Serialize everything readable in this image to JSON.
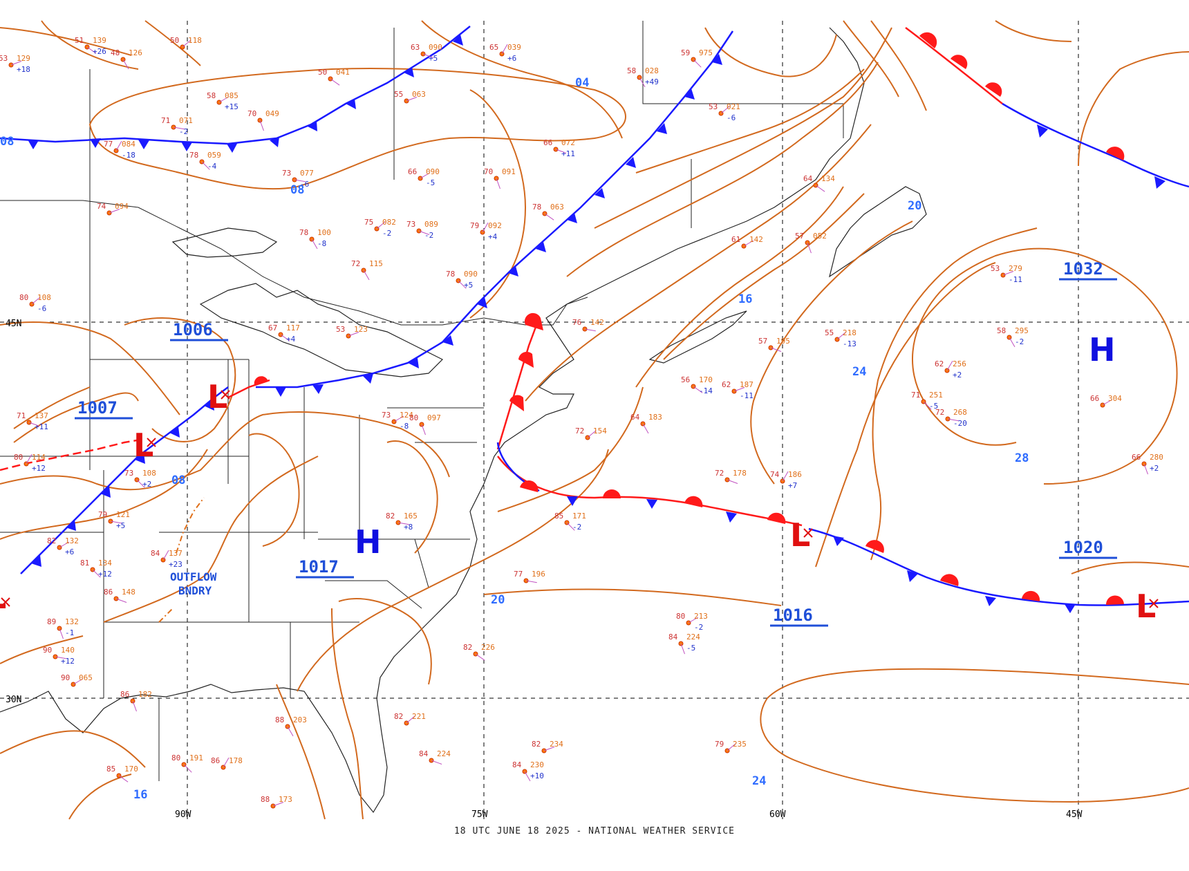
{
  "footer": "18 UTC JUNE 18 2025 - NATIONAL WEATHER SERVICE",
  "colors": {
    "isobar": "#d2691e",
    "cold_front": "#1a1aff",
    "warm_front": "#ff1a1a",
    "high": "#1010e0",
    "low": "#e01010"
  },
  "graticule": {
    "lat_labels": [
      "45N",
      "30N"
    ],
    "lon_labels": [
      "90W",
      "75W",
      "60W",
      "45W"
    ]
  },
  "pressure_values": [
    "1006",
    "1007",
    "1017",
    "1016",
    "1032",
    "1020"
  ],
  "isobar_labels": [
    "04",
    "08",
    "08",
    "08",
    "16",
    "20",
    "20",
    "24",
    "24",
    "28",
    "16",
    "24"
  ],
  "centers": {
    "highs": [
      "H",
      "H"
    ],
    "lows": [
      "L",
      "L",
      "L",
      "L",
      "L"
    ]
  },
  "annotation": {
    "line1": "OUTFLOW",
    "line2": "BNDRY"
  },
  "station_samples": [
    {
      "t": "51",
      "p": "139",
      "x": "+26"
    },
    {
      "t": "53",
      "p": "129",
      "x": "+18"
    },
    {
      "t": "48",
      "p": "126"
    },
    {
      "t": "50",
      "p": "118"
    },
    {
      "t": "63",
      "p": "090",
      "x": "+5"
    },
    {
      "t": "65",
      "p": "039",
      "x": "+6"
    },
    {
      "t": "59",
      "p": "975"
    },
    {
      "t": "71",
      "p": "071",
      "x": "-2"
    },
    {
      "t": "58",
      "p": "085",
      "x": "+15"
    },
    {
      "t": "70",
      "p": "049"
    },
    {
      "t": "50",
      "p": "041"
    },
    {
      "t": "55",
      "p": "063"
    },
    {
      "t": "58",
      "p": "028",
      "x": "+49"
    },
    {
      "t": "53",
      "p": "021",
      "x": "-6"
    },
    {
      "t": "66",
      "p": "072",
      "x": "+11"
    },
    {
      "t": "77",
      "p": "084",
      "x": "-18"
    },
    {
      "t": "78",
      "p": "059",
      "x": "-4"
    },
    {
      "t": "73",
      "p": "077",
      "x": "-6"
    },
    {
      "t": "66",
      "p": "090",
      "x": "-5"
    },
    {
      "t": "70",
      "p": "091"
    },
    {
      "t": "78",
      "p": "063"
    },
    {
      "t": "74",
      "p": "094"
    },
    {
      "t": "78",
      "p": "100",
      "x": "-8"
    },
    {
      "t": "75",
      "p": "082",
      "x": "-2"
    },
    {
      "t": "73",
      "p": "089",
      "x": "-2"
    },
    {
      "t": "79",
      "p": "092",
      "x": "+4"
    },
    {
      "t": "78",
      "p": "090",
      "x": "+5"
    },
    {
      "t": "76",
      "p": "142"
    },
    {
      "t": "61",
      "p": "142"
    },
    {
      "t": "57",
      "p": "052"
    },
    {
      "t": "64",
      "p": "134"
    },
    {
      "t": "53",
      "p": "279",
      "x": "-11"
    },
    {
      "t": "58",
      "p": "295",
      "x": "-2"
    },
    {
      "t": "55",
      "p": "218",
      "x": "-13"
    },
    {
      "t": "57",
      "p": "195"
    },
    {
      "t": "62",
      "p": "256",
      "x": "+2"
    },
    {
      "t": "71",
      "p": "251",
      "x": "-5"
    },
    {
      "t": "72",
      "p": "268",
      "x": "-20"
    },
    {
      "t": "66",
      "p": "304"
    },
    {
      "t": "66",
      "p": "280",
      "x": "+2"
    },
    {
      "t": "56",
      "p": "170",
      "x": "-14"
    },
    {
      "t": "62",
      "p": "187",
      "x": "-11"
    },
    {
      "t": "64",
      "p": "183"
    },
    {
      "t": "72",
      "p": "154"
    },
    {
      "t": "72",
      "p": "178"
    },
    {
      "t": "74",
      "p": "186",
      "x": "+7"
    },
    {
      "t": "85",
      "p": "171",
      "x": "-2"
    },
    {
      "t": "77",
      "p": "196"
    },
    {
      "t": "80",
      "p": "213",
      "x": "-2"
    },
    {
      "t": "84",
      "p": "224",
      "x": "-5"
    },
    {
      "t": "82",
      "p": "226"
    },
    {
      "t": "82",
      "p": "234"
    },
    {
      "t": "84",
      "p": "230",
      "x": "+10"
    },
    {
      "t": "79",
      "p": "235"
    },
    {
      "t": "86",
      "p": "148"
    },
    {
      "t": "84",
      "p": "137",
      "x": "+23"
    },
    {
      "t": "81",
      "p": "134",
      "x": "+12"
    },
    {
      "t": "90",
      "p": "140",
      "x": "+12"
    },
    {
      "t": "90",
      "p": "065"
    },
    {
      "t": "86",
      "p": "182"
    },
    {
      "t": "85",
      "p": "170"
    },
    {
      "t": "88",
      "p": "173"
    },
    {
      "t": "88",
      "p": "203"
    },
    {
      "t": "82",
      "p": "221"
    },
    {
      "t": "84",
      "p": "224"
    },
    {
      "t": "86",
      "p": "178"
    },
    {
      "t": "80",
      "p": "191"
    },
    {
      "t": "82",
      "p": "165",
      "x": "+8"
    },
    {
      "t": "73",
      "p": "124",
      "x": "-8"
    },
    {
      "t": "80",
      "p": "097"
    },
    {
      "t": "67",
      "p": "117",
      "x": "+4"
    },
    {
      "t": "53",
      "p": "123"
    },
    {
      "t": "72",
      "p": "115"
    },
    {
      "t": "80",
      "p": "108",
      "x": "-6"
    },
    {
      "t": "71",
      "p": "137",
      "x": "+11"
    },
    {
      "t": "80",
      "p": "114",
      "x": "+12"
    },
    {
      "t": "73",
      "p": "108",
      "x": "+2"
    },
    {
      "t": "79",
      "p": "121",
      "x": "+5"
    },
    {
      "t": "82",
      "p": "132",
      "x": "+6"
    },
    {
      "t": "89",
      "p": "132",
      "x": "-1"
    }
  ]
}
